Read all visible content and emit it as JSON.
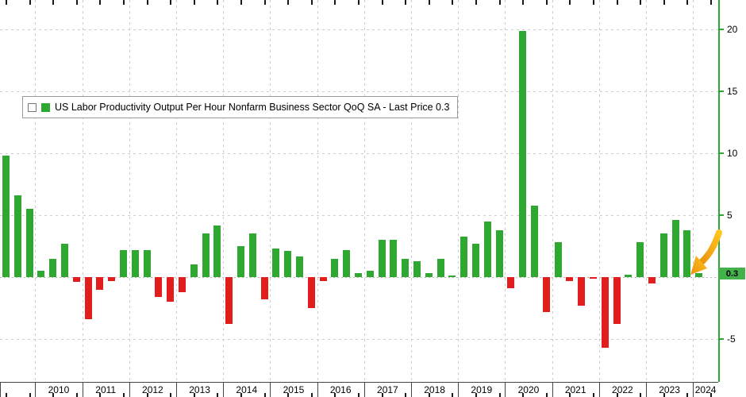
{
  "legend": {
    "label": "US Labor Productivity Output Per Hour Nonfarm Business Sector QoQ SA - Last Price 0.3"
  },
  "axes": {
    "y_ticks": [
      20,
      15,
      10,
      5,
      -5
    ],
    "years": [
      2010,
      2011,
      2012,
      2013,
      2014,
      2015,
      2016,
      2017,
      2018,
      2019,
      2020,
      2021,
      2022,
      2023,
      2024
    ],
    "last_price_label": "0.3"
  },
  "chart_data": {
    "type": "bar",
    "title": "US Labor Productivity Output Per Hour Nonfarm Business Sector QoQ SA",
    "xlabel": "",
    "ylabel": "",
    "ylim": [
      -8.4,
      22.4
    ],
    "grid": true,
    "legend_position": "top-left",
    "last_price": 0.3,
    "x": [
      "2009Q2",
      "2009Q3",
      "2009Q4",
      "2010Q1",
      "2010Q2",
      "2010Q3",
      "2010Q4",
      "2011Q1",
      "2011Q2",
      "2011Q3",
      "2011Q4",
      "2012Q1",
      "2012Q2",
      "2012Q3",
      "2012Q4",
      "2013Q1",
      "2013Q2",
      "2013Q3",
      "2013Q4",
      "2014Q1",
      "2014Q2",
      "2014Q3",
      "2014Q4",
      "2015Q1",
      "2015Q2",
      "2015Q3",
      "2015Q4",
      "2016Q1",
      "2016Q2",
      "2016Q3",
      "2016Q4",
      "2017Q1",
      "2017Q2",
      "2017Q3",
      "2017Q4",
      "2018Q1",
      "2018Q2",
      "2018Q3",
      "2018Q4",
      "2019Q1",
      "2019Q2",
      "2019Q3",
      "2019Q4",
      "2020Q1",
      "2020Q2",
      "2020Q3",
      "2020Q4",
      "2021Q1",
      "2021Q2",
      "2021Q3",
      "2021Q4",
      "2022Q1",
      "2022Q2",
      "2022Q3",
      "2022Q4",
      "2023Q1",
      "2023Q2",
      "2023Q3",
      "2023Q4",
      "2024Q1"
    ],
    "values": [
      9.8,
      6.6,
      5.5,
      0.5,
      1.5,
      2.7,
      -0.4,
      -3.4,
      -1.0,
      -0.3,
      2.2,
      2.2,
      2.2,
      -1.6,
      -2.0,
      -1.2,
      1.0,
      3.5,
      4.2,
      -3.8,
      2.5,
      3.5,
      -1.8,
      2.3,
      2.1,
      1.7,
      -2.5,
      -0.3,
      1.5,
      2.2,
      0.3,
      0.5,
      3.0,
      3.0,
      1.5,
      1.3,
      0.3,
      1.5,
      0.1,
      3.3,
      2.7,
      4.5,
      3.8,
      -0.9,
      19.9,
      5.8,
      -2.8,
      2.8,
      -0.3,
      -2.3,
      -0.1,
      -5.7,
      -3.8,
      0.2,
      2.8,
      -0.5,
      3.5,
      4.6,
      3.8,
      0.3
    ],
    "colors": {
      "positive": "#2fa832",
      "negative": "#e21d1d",
      "axis_green": "#2fa832",
      "grid": "#cccccc",
      "annotation_arrow": "#f2a51b",
      "last_price_badge_bg": "#44b24a"
    }
  }
}
